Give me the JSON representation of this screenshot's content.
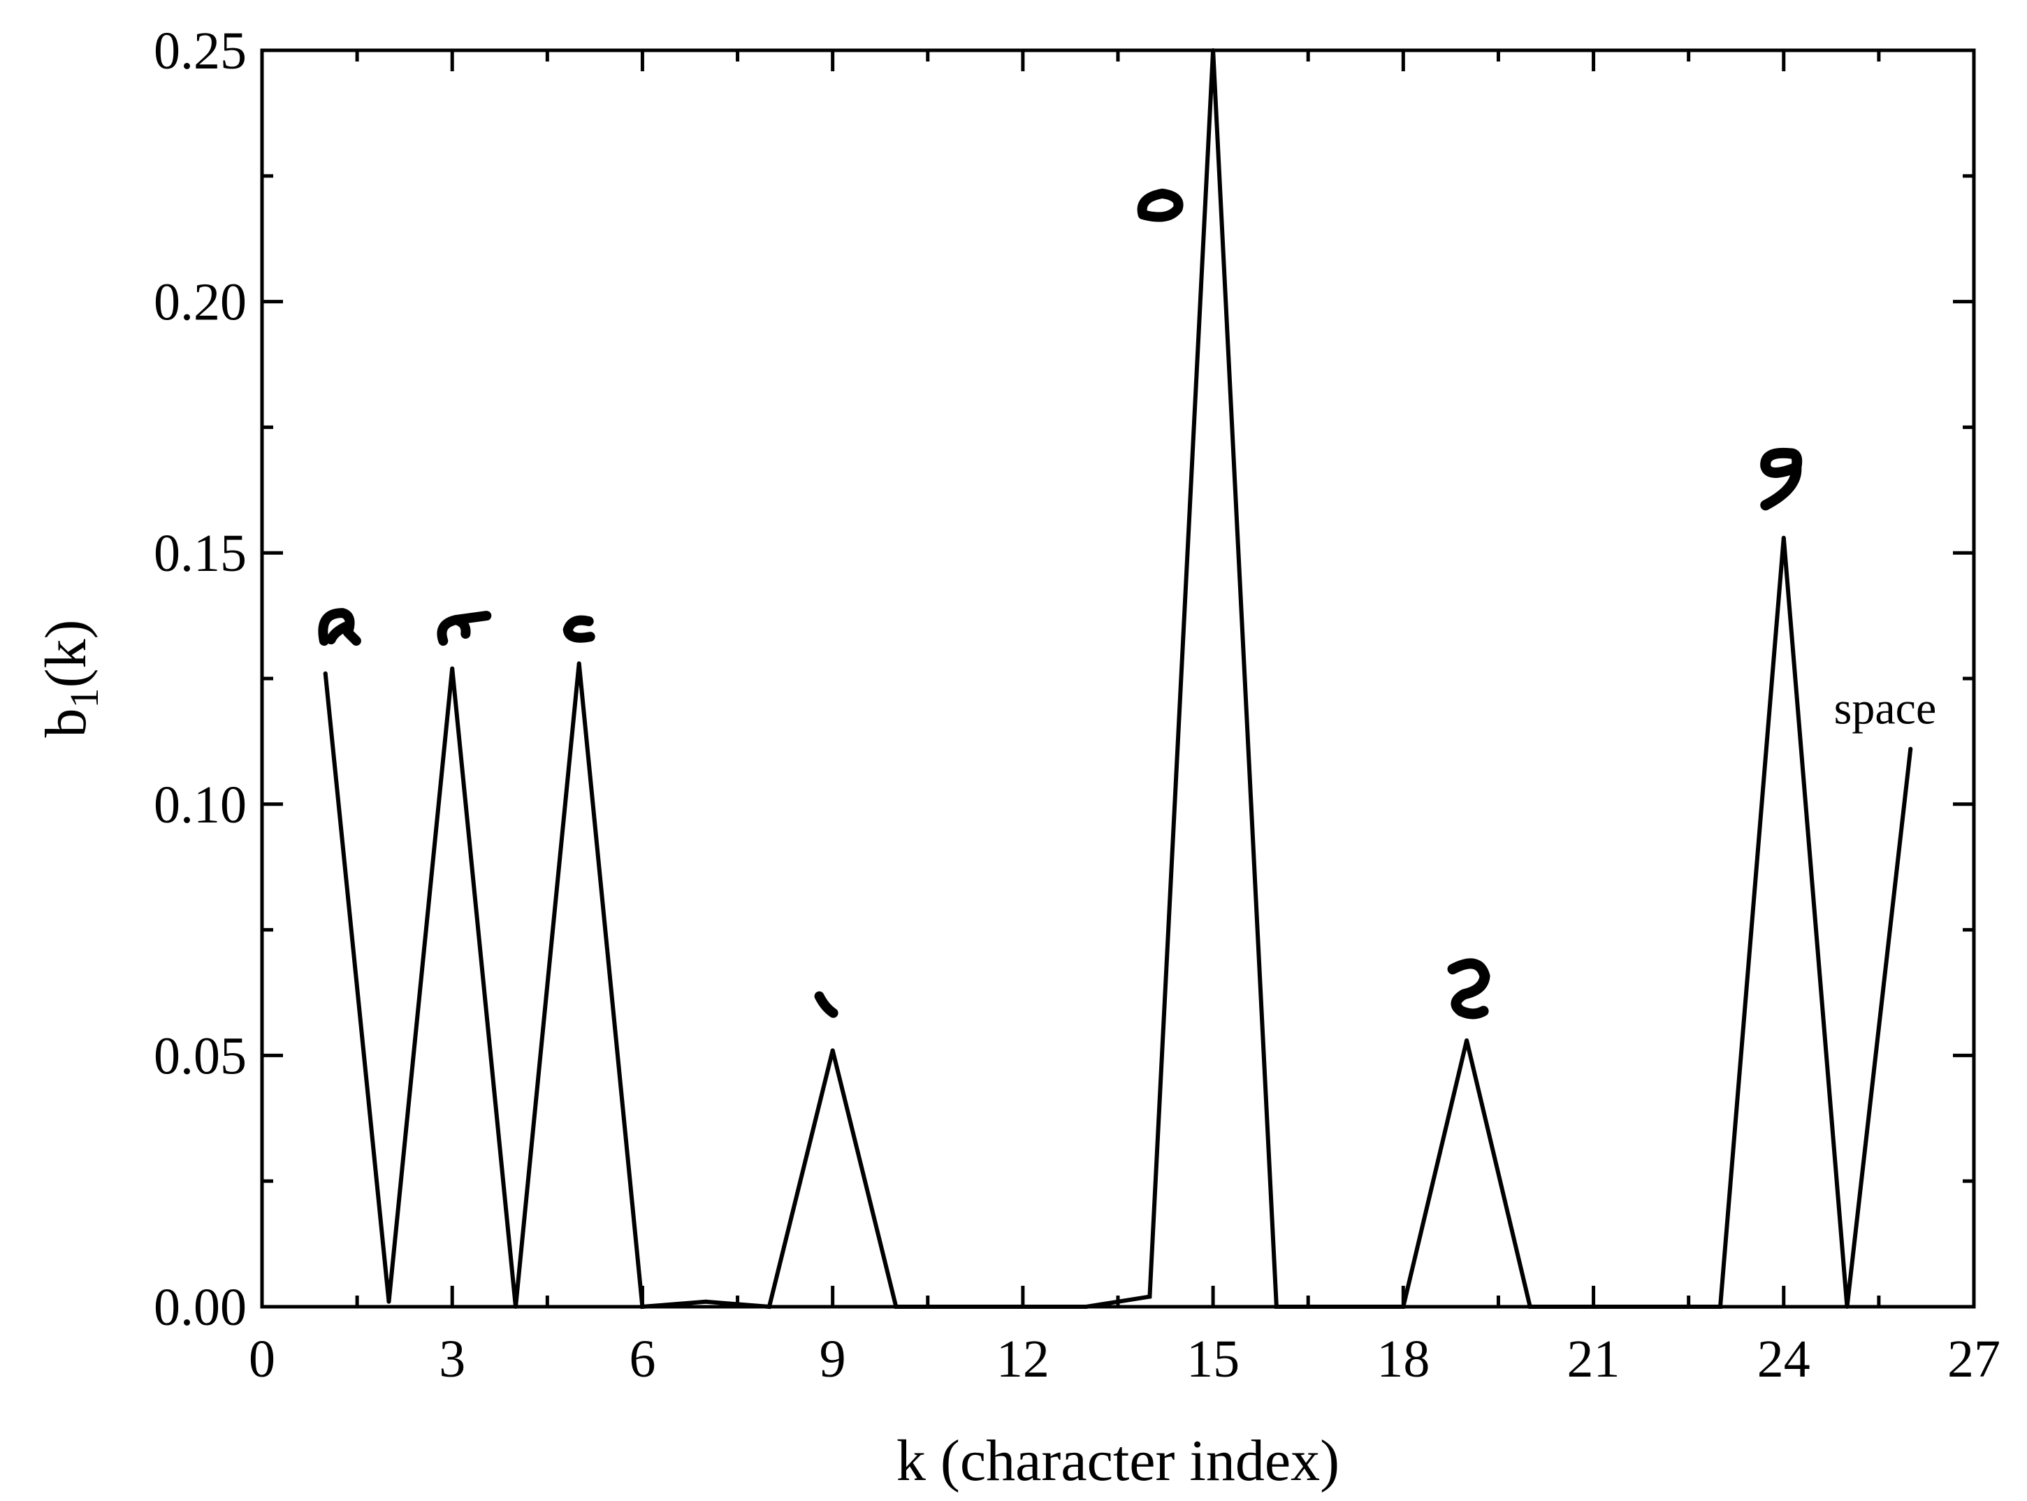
{
  "chart_data": {
    "type": "line",
    "xlabel": "k (character index)",
    "ylabel": "b",
    "ylabel_sub": "1",
    "ylabel_tail": "(k)",
    "xlim": [
      0,
      27
    ],
    "ylim": [
      0,
      0.25
    ],
    "x_ticks": [
      "0",
      "3",
      "6",
      "9",
      "12",
      "15",
      "18",
      "21",
      "24",
      "27"
    ],
    "y_ticks": [
      "0.00",
      "0.05",
      "0.10",
      "0.15",
      "0.20",
      "0.25"
    ],
    "grid": false,
    "series": [
      {
        "x": [
          1,
          2,
          3,
          4,
          5,
          6,
          7,
          8,
          9,
          10,
          11,
          12,
          13,
          14,
          15,
          16,
          17,
          18,
          19,
          20,
          21,
          22,
          23,
          24,
          25,
          26
        ],
        "y": [
          0.126,
          0.001,
          0.127,
          0.0,
          0.128,
          0.0,
          0.001,
          0.0,
          0.051,
          0.0,
          0.0,
          0.0,
          0.0,
          0.002,
          0.25,
          0.0,
          0.0,
          0.0,
          0.053,
          0.0,
          0.0,
          0.0,
          0.0,
          0.153,
          0.0,
          0.111
        ]
      }
    ],
    "annotations": [
      {
        "text": "space",
        "x": 25.6,
        "y": 0.116
      }
    ],
    "glyph_annotations": [
      {
        "glyph": "a-like",
        "x": 1.2,
        "y": 0.135
      },
      {
        "glyph": "hook",
        "x": 3.1,
        "y": 0.135
      },
      {
        "glyph": "c-like",
        "x": 5.0,
        "y": 0.135
      },
      {
        "glyph": "tick-mark",
        "x": 8.9,
        "y": 0.059
      },
      {
        "glyph": "o-like",
        "x": 14.2,
        "y": 0.219
      },
      {
        "glyph": "s-like",
        "x": 19.0,
        "y": 0.063
      },
      {
        "glyph": "9-like",
        "x": 24.0,
        "y": 0.167
      }
    ]
  }
}
